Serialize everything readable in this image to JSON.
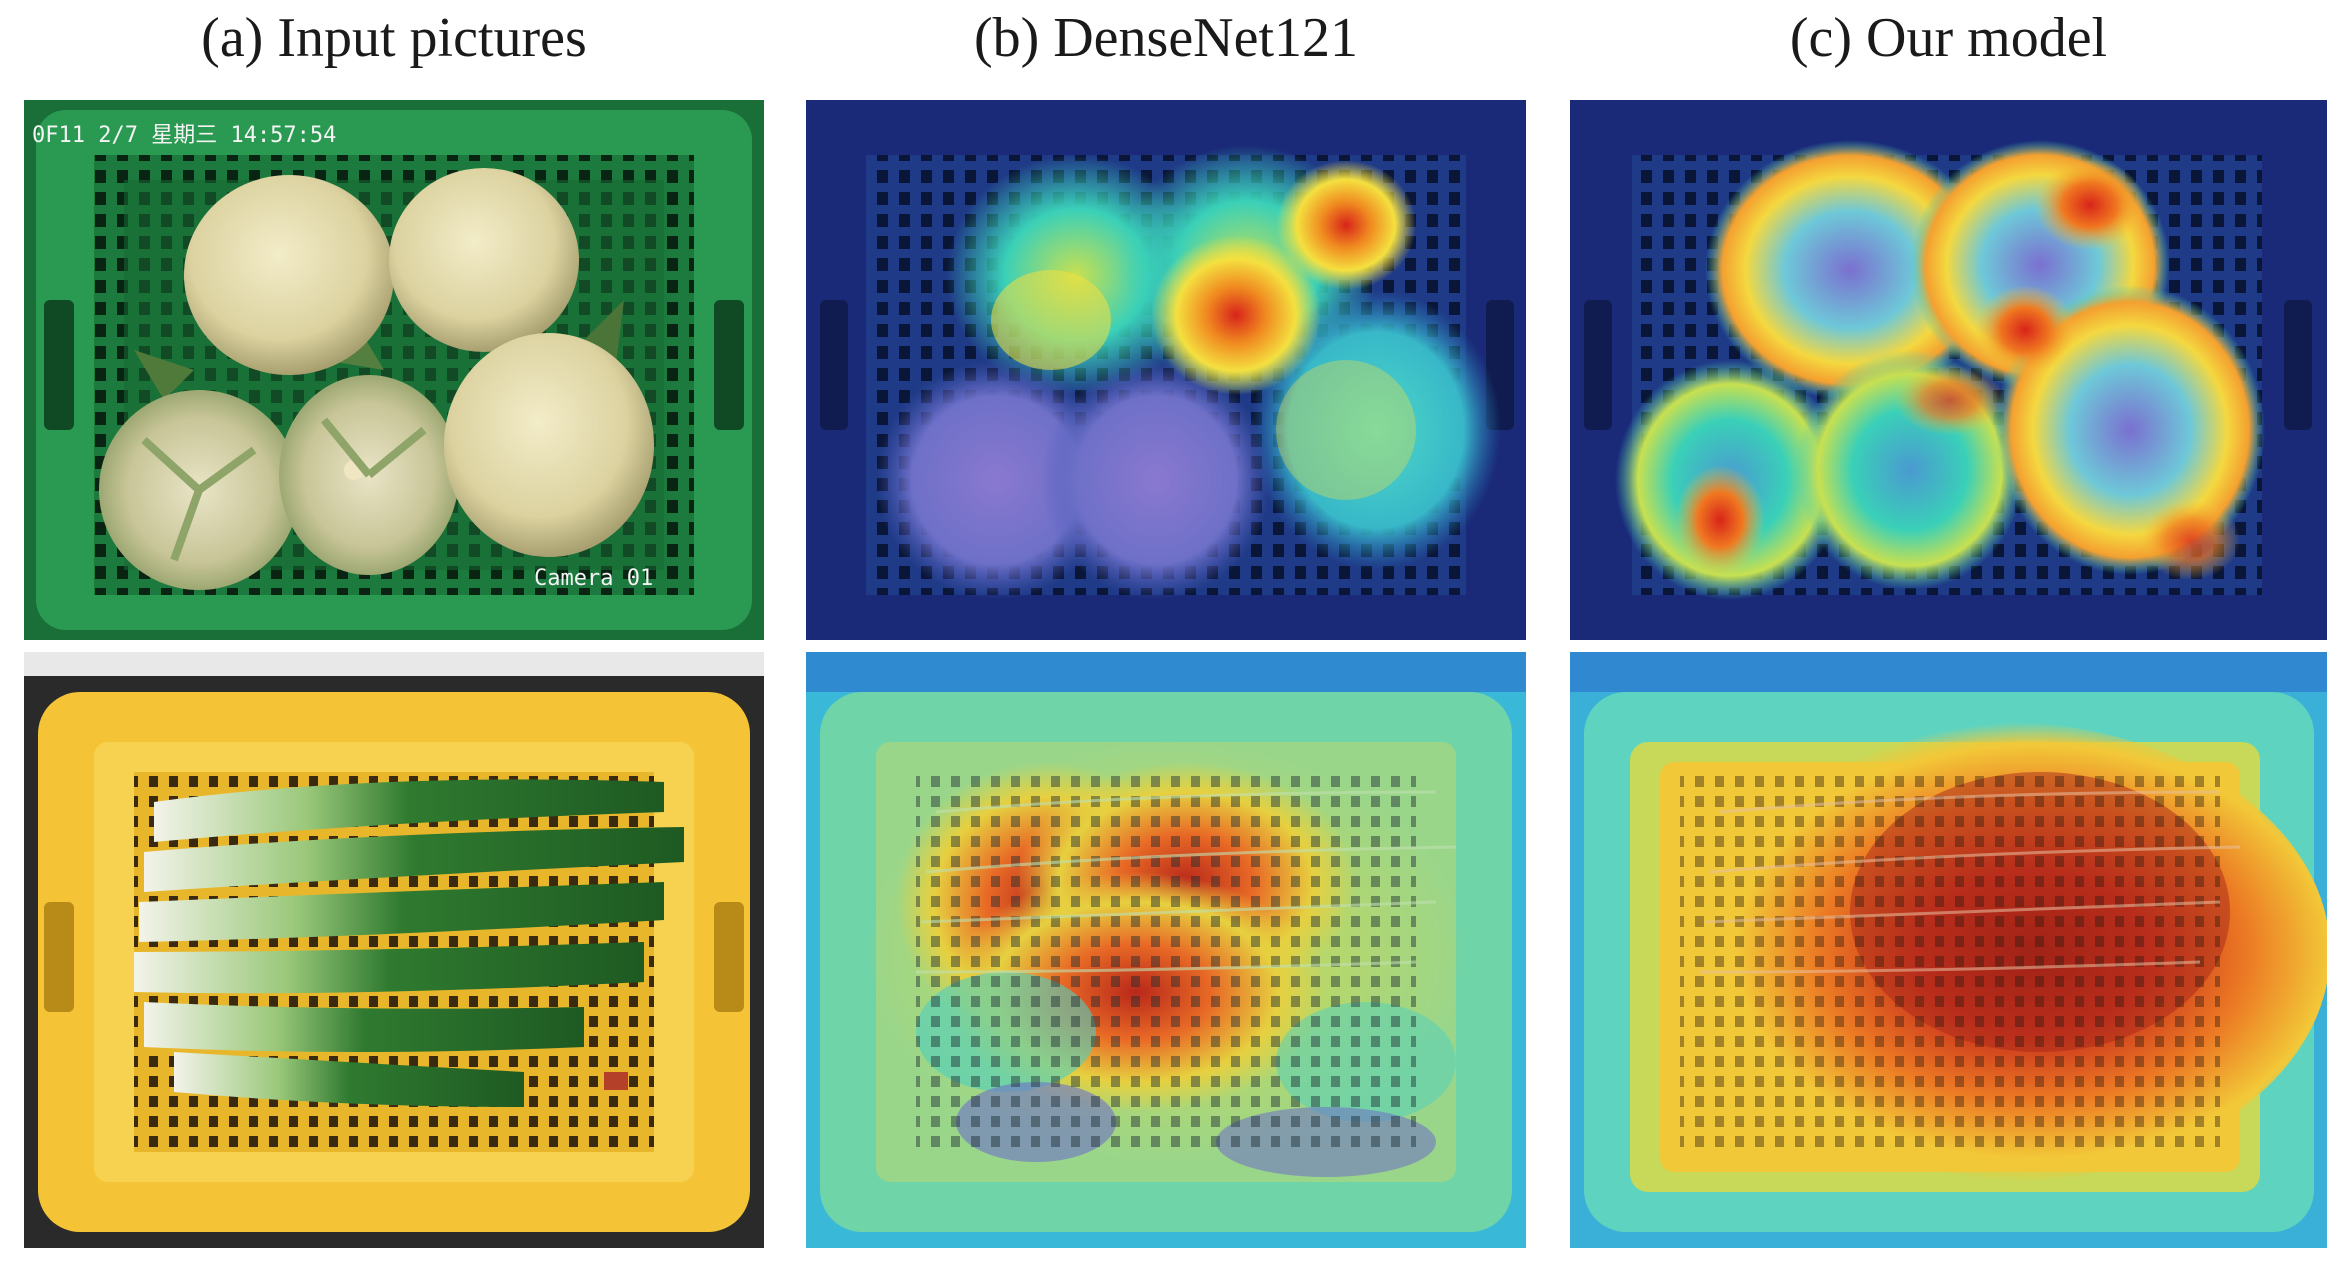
{
  "columns": [
    {
      "title": "(a) Input pictures"
    },
    {
      "title": "(b) DenseNet121"
    },
    {
      "title": "(c) Our model"
    }
  ],
  "rows": [
    {
      "subject": "cauliflower",
      "basket_color": "#1f8a46",
      "stamps": {
        "top": "0F11 2/7 星期三 14:57:54",
        "bottom": "Camera 01"
      }
    },
    {
      "subject": "green onion",
      "basket_color": "#f3c234"
    }
  ],
  "heatmap_colors": {
    "low": "#2a3fa8",
    "mid": "#3ad0c0",
    "high": "#f4e040",
    "peak": "#d8241a"
  }
}
